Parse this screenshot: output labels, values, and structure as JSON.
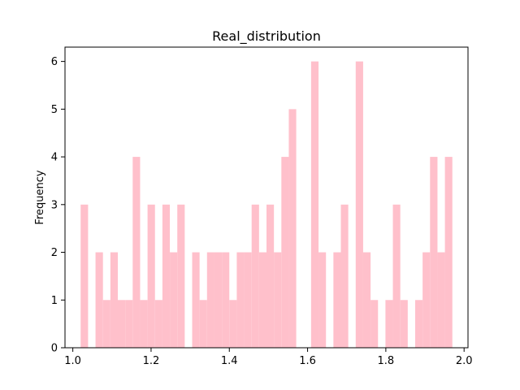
{
  "chart_data": {
    "type": "bar",
    "title": "Real_distribution",
    "xlabel": "",
    "ylabel": "Frequency",
    "xlim": [
      0.98,
      2.01
    ],
    "ylim": [
      0,
      6.3
    ],
    "bin_width": 0.019,
    "bin_starts": [
      1.02,
      1.039,
      1.058,
      1.077,
      1.096,
      1.115,
      1.134,
      1.153,
      1.172,
      1.191,
      1.21,
      1.229,
      1.248,
      1.267,
      1.286,
      1.305,
      1.324,
      1.343,
      1.362,
      1.381,
      1.4,
      1.419,
      1.438,
      1.457,
      1.476,
      1.495,
      1.514,
      1.533,
      1.552,
      1.571,
      1.59,
      1.609,
      1.628,
      1.647,
      1.666,
      1.685,
      1.704,
      1.723,
      1.742,
      1.761,
      1.78,
      1.799,
      1.818,
      1.837,
      1.856,
      1.875,
      1.894,
      1.913,
      1.932,
      1.951
    ],
    "values": [
      3,
      0,
      2,
      1,
      2,
      1,
      1,
      4,
      1,
      3,
      1,
      3,
      2,
      3,
      0,
      2,
      1,
      2,
      2,
      2,
      1,
      2,
      2,
      3,
      2,
      3,
      2,
      4,
      5,
      0,
      0,
      6,
      2,
      0,
      2,
      3,
      0,
      6,
      2,
      1,
      0,
      1,
      3,
      1,
      0,
      1,
      2,
      4,
      2,
      4
    ],
    "bar_color": "#ffc0cb",
    "x_ticks": [
      1.0,
      1.2,
      1.4,
      1.6,
      1.8,
      2.0
    ],
    "x_tick_labels": [
      "1.0",
      "1.2",
      "1.4",
      "1.6",
      "1.8",
      "2.0"
    ],
    "y_ticks": [
      0,
      1,
      2,
      3,
      4,
      5,
      6
    ],
    "y_tick_labels": [
      "0",
      "1",
      "2",
      "3",
      "4",
      "5",
      "6"
    ],
    "grid": false,
    "legend": "none"
  }
}
